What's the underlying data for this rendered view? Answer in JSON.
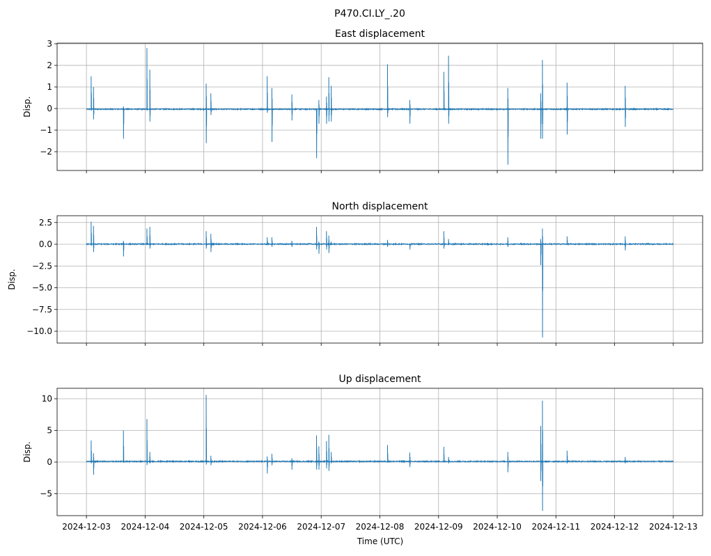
{
  "chart_data": {
    "type": "line",
    "title": "P470.CI.LY_.20",
    "xlabel": "Time (UTC)",
    "x_unit": "days since 2024-12-03 00:00 UTC",
    "xlim": [
      -0.5,
      10.5
    ],
    "xticks": [
      0,
      1,
      2,
      3,
      4,
      5,
      6,
      7,
      8,
      9,
      10
    ],
    "xtick_labels": [
      "2024-12-03",
      "2024-12-04",
      "2024-12-05",
      "2024-12-06",
      "2024-12-07",
      "2024-12-08",
      "2024-12-09",
      "2024-12-10",
      "2024-12-11",
      "2024-12-12",
      "2024-12-13"
    ],
    "grid": true,
    "color": "#1f77b4",
    "panels": [
      {
        "title": "East displacement",
        "ylabel": "Disp.",
        "ylim": [
          -2.87,
          3.03
        ],
        "yticks": [
          -2,
          -1,
          0,
          1,
          2,
          3
        ],
        "ytick_labels": [
          "−2",
          "−1",
          "0",
          "1",
          "2",
          "3"
        ],
        "baseline": -0.03,
        "events": [
          [
            0.08,
            1.5,
            -0.1
          ],
          [
            0.12,
            1.0,
            -0.5
          ],
          [
            0.63,
            0.1,
            -1.4
          ],
          [
            1.03,
            2.8,
            -0.1
          ],
          [
            1.08,
            1.8,
            -0.6
          ],
          [
            2.04,
            1.15,
            -1.6
          ],
          [
            2.12,
            0.7,
            -0.3
          ],
          [
            3.08,
            1.5,
            -0.2
          ],
          [
            3.16,
            0.95,
            -1.55
          ],
          [
            3.5,
            0.65,
            -0.55
          ],
          [
            3.92,
            -0.5,
            -2.3
          ],
          [
            3.96,
            0.4,
            -0.7
          ],
          [
            4.09,
            0.55,
            -0.7
          ],
          [
            4.13,
            1.45,
            -0.6
          ],
          [
            4.17,
            1.05,
            -0.6
          ],
          [
            5.13,
            2.05,
            -0.4
          ],
          [
            5.51,
            0.4,
            -0.7
          ],
          [
            6.09,
            1.7,
            -0.05
          ],
          [
            6.17,
            2.45,
            -0.7
          ],
          [
            7.18,
            0.95,
            -2.6
          ],
          [
            7.74,
            0.7,
            -1.4
          ],
          [
            7.77,
            2.25,
            -1.4
          ],
          [
            8.19,
            1.2,
            -1.2
          ],
          [
            9.18,
            1.05,
            -0.85
          ]
        ]
      },
      {
        "title": "North displacement",
        "ylabel": "Disp.",
        "ylim": [
          -11.36,
          3.28
        ],
        "yticks": [
          -10,
          -7.5,
          -5,
          -2.5,
          0,
          2.5
        ],
        "ytick_labels": [
          "−10.0",
          "−7.5",
          "−5.0",
          "−2.5",
          "0.0",
          "2.5"
        ],
        "baseline": 0.02,
        "events": [
          [
            0.08,
            2.6,
            -0.2
          ],
          [
            0.12,
            2.1,
            -0.9
          ],
          [
            0.63,
            0.4,
            -1.4
          ],
          [
            1.03,
            1.8,
            -0.1
          ],
          [
            1.08,
            2.0,
            -0.5
          ],
          [
            2.04,
            1.5,
            -0.5
          ],
          [
            2.12,
            1.2,
            -0.9
          ],
          [
            3.08,
            0.8,
            -0.1
          ],
          [
            3.16,
            0.8,
            -0.3
          ],
          [
            3.5,
            0.4,
            -0.3
          ],
          [
            3.92,
            2.0,
            -0.6
          ],
          [
            3.96,
            0.3,
            -1.1
          ],
          [
            4.09,
            1.5,
            -0.6
          ],
          [
            4.13,
            1.0,
            -1.0
          ],
          [
            4.17,
            0.3,
            -0.1
          ],
          [
            5.13,
            0.5,
            -0.3
          ],
          [
            5.51,
            0.1,
            -0.6
          ],
          [
            6.09,
            1.5,
            -0.5
          ],
          [
            6.17,
            0.6,
            -0.1
          ],
          [
            7.18,
            0.8,
            -0.3
          ],
          [
            7.74,
            0.6,
            -2.4
          ],
          [
            7.77,
            1.8,
            -10.7
          ],
          [
            8.19,
            0.9,
            -0.1
          ],
          [
            9.18,
            0.9,
            -0.7
          ]
        ]
      },
      {
        "title": "Up displacement",
        "ylabel": "Disp.",
        "ylim": [
          -8.46,
          11.65
        ],
        "yticks": [
          -5,
          0,
          5,
          10
        ],
        "ytick_labels": [
          "−5",
          "0",
          "5",
          "10"
        ],
        "baseline": 0.1,
        "events": [
          [
            0.08,
            3.4,
            -0.2
          ],
          [
            0.12,
            1.4,
            -2.0
          ],
          [
            0.63,
            5.0,
            -0.1
          ],
          [
            1.03,
            6.8,
            -0.5
          ],
          [
            1.08,
            1.6,
            -0.2
          ],
          [
            2.04,
            10.6,
            -0.4
          ],
          [
            2.12,
            1.0,
            -0.5
          ],
          [
            3.08,
            0.9,
            -1.8
          ],
          [
            3.16,
            1.3,
            -0.5
          ],
          [
            3.5,
            0.6,
            -1.2
          ],
          [
            3.92,
            4.2,
            -1.2
          ],
          [
            3.96,
            2.5,
            -1.2
          ],
          [
            4.09,
            3.3,
            -1.0
          ],
          [
            4.13,
            4.3,
            -1.4
          ],
          [
            4.17,
            1.6,
            -0.2
          ],
          [
            5.13,
            2.7,
            -0.1
          ],
          [
            5.51,
            1.5,
            -0.8
          ],
          [
            6.09,
            2.4,
            -0.1
          ],
          [
            6.17,
            0.8,
            -0.2
          ],
          [
            7.18,
            1.6,
            -1.6
          ],
          [
            7.74,
            5.7,
            -3.0
          ],
          [
            7.77,
            9.7,
            -7.7
          ],
          [
            8.19,
            1.8,
            -0.2
          ],
          [
            9.18,
            0.8,
            -0.2
          ]
        ]
      }
    ]
  }
}
